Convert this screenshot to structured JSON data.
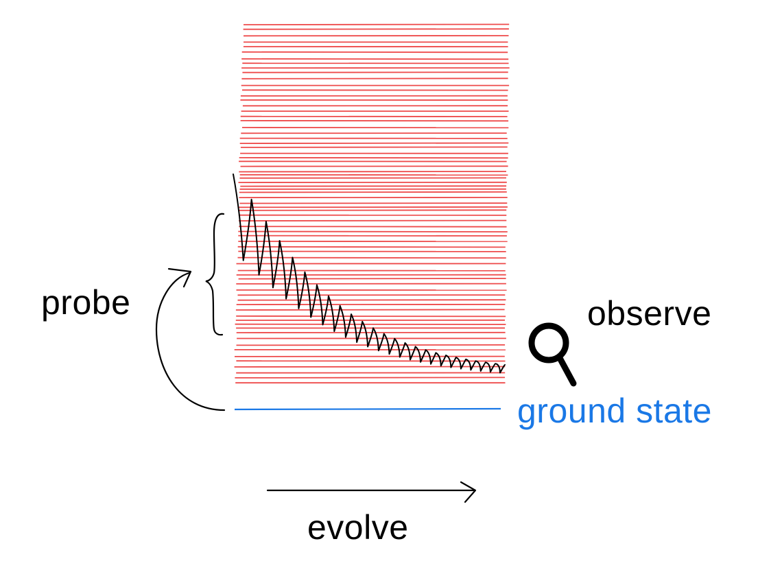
{
  "labels": {
    "probe": "probe",
    "observe": "observe",
    "ground_state": "ground state",
    "evolve": "evolve"
  },
  "colors": {
    "excited_levels": "#ee4a4a",
    "ground_state": "#1a78e6",
    "ink": "#000000"
  },
  "icons": {
    "observe": "magnifier-icon"
  }
}
